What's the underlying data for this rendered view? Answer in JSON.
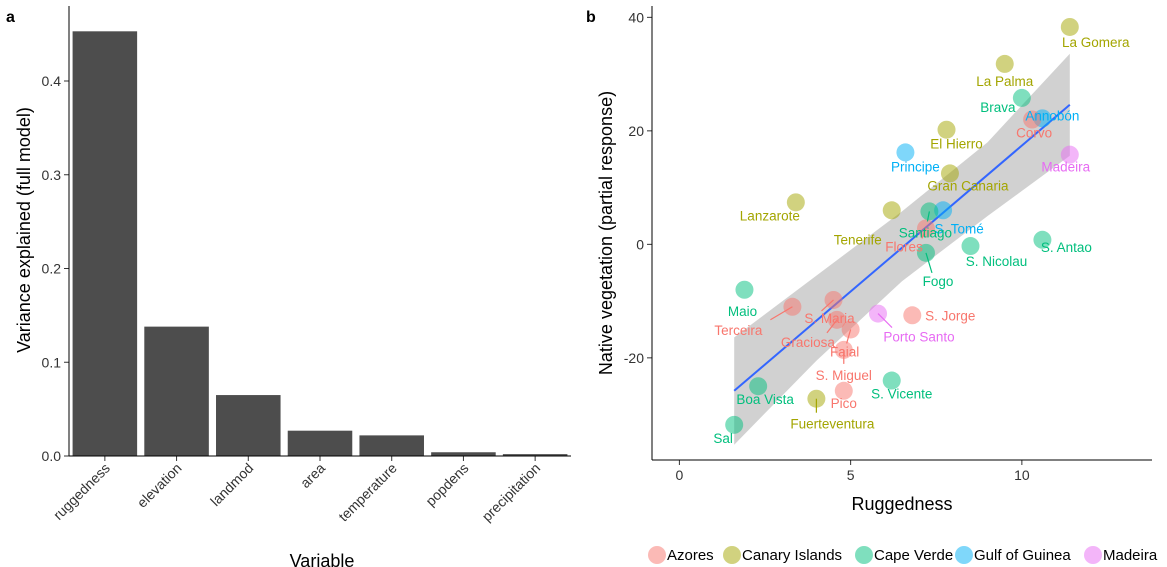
{
  "chart_data": [
    {
      "type": "bar",
      "panel_label": "a",
      "xlabel": "Variable",
      "ylabel": "Variance explained (full model)",
      "categories": [
        "ruggedness",
        "elevation",
        "landmod",
        "area",
        "temperature",
        "popdens",
        "precipitation"
      ],
      "values": [
        0.453,
        0.138,
        0.065,
        0.027,
        0.022,
        0.004,
        0.002
      ],
      "ylim": [
        0,
        0.48
      ],
      "yticks": [
        "0.0",
        "0.1",
        "0.2",
        "0.3",
        "0.4"
      ],
      "grid": false,
      "bar_color": "#4d4d4d"
    },
    {
      "type": "scatter",
      "panel_label": "b",
      "xlabel": "Ruggedness",
      "ylabel": "Native vegetation (partial response)",
      "xlim": [
        -0.8,
        13.8
      ],
      "ylim": [
        -38,
        42
      ],
      "xticks": [
        "0",
        "5",
        "10"
      ],
      "yticks": [
        "-20",
        "0",
        "20",
        "40"
      ],
      "grid": false,
      "legend_position": "bottom",
      "groups": [
        {
          "name": "Azores",
          "color": "#f8766d"
        },
        {
          "name": "Canary Islands",
          "color": "#a3a500"
        },
        {
          "name": "Cape Verde",
          "color": "#00bf7d"
        },
        {
          "name": "Gulf of Guinea",
          "color": "#00b0f6"
        },
        {
          "name": "Madeira",
          "color": "#e76bf3"
        }
      ],
      "points": [
        {
          "label": "La Gomera",
          "group": "Canary Islands",
          "x": 11.4,
          "y": 38.3
        },
        {
          "label": "La Palma",
          "group": "Canary Islands",
          "x": 9.5,
          "y": 31.8
        },
        {
          "label": "Brava",
          "group": "Cape Verde",
          "x": 10.0,
          "y": 25.8
        },
        {
          "label": "Annobón",
          "group": "Gulf of Guinea",
          "x": 10.6,
          "y": 22.2
        },
        {
          "label": "Corvo",
          "group": "Azores",
          "x": 10.3,
          "y": 22.0
        },
        {
          "label": "El Hierro",
          "group": "Canary Islands",
          "x": 7.8,
          "y": 20.2
        },
        {
          "label": "Principe",
          "group": "Gulf of Guinea",
          "x": 6.6,
          "y": 16.2
        },
        {
          "label": "Madeira",
          "group": "Madeira",
          "x": 11.4,
          "y": 15.8
        },
        {
          "label": "Gran Canaria",
          "group": "Canary Islands",
          "x": 7.9,
          "y": 12.5
        },
        {
          "label": "Lanzarote",
          "group": "Canary Islands",
          "x": 3.4,
          "y": 7.4
        },
        {
          "label": "Tenerife",
          "group": "Canary Islands",
          "x": 6.2,
          "y": 6.0
        },
        {
          "label": "S. Tomé",
          "group": "Gulf of Guinea",
          "x": 7.7,
          "y": 6.0
        },
        {
          "label": "Santiago",
          "group": "Cape Verde",
          "x": 7.3,
          "y": 5.8
        },
        {
          "label": "Flores",
          "group": "Azores",
          "x": 7.2,
          "y": 2.8
        },
        {
          "label": "Fogo",
          "group": "Cape Verde",
          "x": 7.2,
          "y": -1.5
        },
        {
          "label": "S. Nicolau",
          "group": "Cape Verde",
          "x": 8.5,
          "y": -0.3
        },
        {
          "label": "S. Antao",
          "group": "Cape Verde",
          "x": 10.6,
          "y": 0.8
        },
        {
          "label": "Maio",
          "group": "Cape Verde",
          "x": 1.9,
          "y": -8.0
        },
        {
          "label": "Terceira",
          "group": "Azores",
          "x": 3.3,
          "y": -11.0
        },
        {
          "label": "S. Maria",
          "group": "Azores",
          "x": 4.5,
          "y": -9.8
        },
        {
          "label": "Graciosa",
          "group": "Azores",
          "x": 4.6,
          "y": -13.3
        },
        {
          "label": "Faial",
          "group": "Azores",
          "x": 5.0,
          "y": -15.0
        },
        {
          "label": "S. Jorge",
          "group": "Azores",
          "x": 6.8,
          "y": -12.5
        },
        {
          "label": "Porto Santo",
          "group": "Madeira",
          "x": 5.8,
          "y": -12.2
        },
        {
          "label": "S. Miguel",
          "group": "Azores",
          "x": 4.8,
          "y": -18.6
        },
        {
          "label": "S. Vicente",
          "group": "Cape Verde",
          "x": 6.2,
          "y": -24.0
        },
        {
          "label": "Boa Vista",
          "group": "Cape Verde",
          "x": 2.3,
          "y": -25.0
        },
        {
          "label": "Pico",
          "group": "Azores",
          "x": 4.8,
          "y": -25.8
        },
        {
          "label": "Fuerteventura",
          "group": "Canary Islands",
          "x": 4.0,
          "y": -27.2
        },
        {
          "label": "Sal",
          "group": "Cape Verde",
          "x": 1.6,
          "y": -31.8
        }
      ],
      "fit_line": {
        "x": [
          1.6,
          11.4
        ],
        "y": [
          -25.8,
          24.6
        ],
        "color": "#3366ff"
      },
      "confidence_band": {
        "x": [
          1.6,
          4.0,
          6.5,
          9.0,
          11.4
        ],
        "lower": [
          -35.3,
          -20.5,
          -6.5,
          5.0,
          15.6
        ],
        "upper": [
          -16.4,
          -5.5,
          5.8,
          18.0,
          33.6
        ]
      }
    }
  ]
}
